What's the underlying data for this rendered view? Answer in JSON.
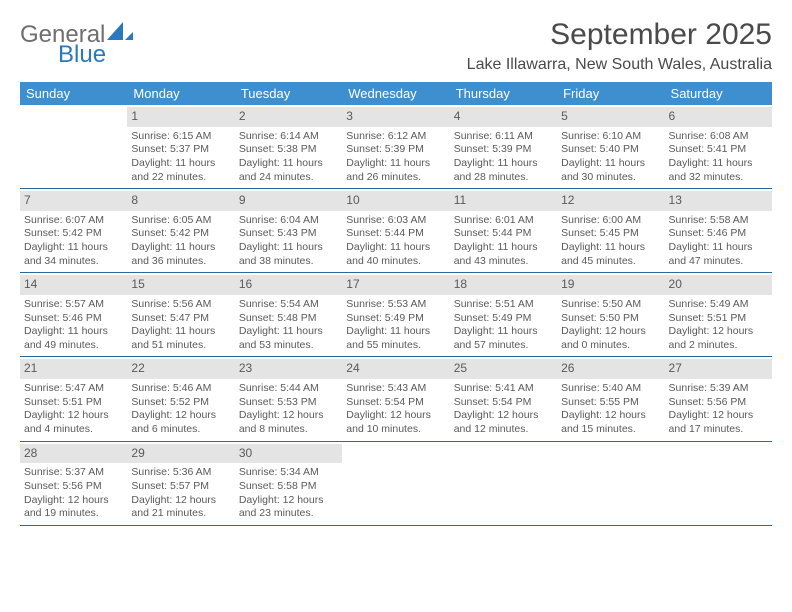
{
  "logo": {
    "word1": "General",
    "word2": "Blue"
  },
  "title": "September 2025",
  "location": "Lake Illawarra, New South Wales, Australia",
  "colors": {
    "header_bg": "#3d8fcf",
    "daynum_bg": "#e4e4e4",
    "row_border": "#2a6aa3",
    "logo_accent": "#2a78bf",
    "text": "#4a4a4a"
  },
  "day_names": [
    "Sunday",
    "Monday",
    "Tuesday",
    "Wednesday",
    "Thursday",
    "Friday",
    "Saturday"
  ],
  "weeks": [
    [
      {
        "n": "",
        "empty": true
      },
      {
        "n": "1",
        "sr": "Sunrise: 6:15 AM",
        "ss": "Sunset: 5:37 PM",
        "d1": "Daylight: 11 hours",
        "d2": "and 22 minutes."
      },
      {
        "n": "2",
        "sr": "Sunrise: 6:14 AM",
        "ss": "Sunset: 5:38 PM",
        "d1": "Daylight: 11 hours",
        "d2": "and 24 minutes."
      },
      {
        "n": "3",
        "sr": "Sunrise: 6:12 AM",
        "ss": "Sunset: 5:39 PM",
        "d1": "Daylight: 11 hours",
        "d2": "and 26 minutes."
      },
      {
        "n": "4",
        "sr": "Sunrise: 6:11 AM",
        "ss": "Sunset: 5:39 PM",
        "d1": "Daylight: 11 hours",
        "d2": "and 28 minutes."
      },
      {
        "n": "5",
        "sr": "Sunrise: 6:10 AM",
        "ss": "Sunset: 5:40 PM",
        "d1": "Daylight: 11 hours",
        "d2": "and 30 minutes."
      },
      {
        "n": "6",
        "sr": "Sunrise: 6:08 AM",
        "ss": "Sunset: 5:41 PM",
        "d1": "Daylight: 11 hours",
        "d2": "and 32 minutes."
      }
    ],
    [
      {
        "n": "7",
        "sr": "Sunrise: 6:07 AM",
        "ss": "Sunset: 5:42 PM",
        "d1": "Daylight: 11 hours",
        "d2": "and 34 minutes."
      },
      {
        "n": "8",
        "sr": "Sunrise: 6:05 AM",
        "ss": "Sunset: 5:42 PM",
        "d1": "Daylight: 11 hours",
        "d2": "and 36 minutes."
      },
      {
        "n": "9",
        "sr": "Sunrise: 6:04 AM",
        "ss": "Sunset: 5:43 PM",
        "d1": "Daylight: 11 hours",
        "d2": "and 38 minutes."
      },
      {
        "n": "10",
        "sr": "Sunrise: 6:03 AM",
        "ss": "Sunset: 5:44 PM",
        "d1": "Daylight: 11 hours",
        "d2": "and 40 minutes."
      },
      {
        "n": "11",
        "sr": "Sunrise: 6:01 AM",
        "ss": "Sunset: 5:44 PM",
        "d1": "Daylight: 11 hours",
        "d2": "and 43 minutes."
      },
      {
        "n": "12",
        "sr": "Sunrise: 6:00 AM",
        "ss": "Sunset: 5:45 PM",
        "d1": "Daylight: 11 hours",
        "d2": "and 45 minutes."
      },
      {
        "n": "13",
        "sr": "Sunrise: 5:58 AM",
        "ss": "Sunset: 5:46 PM",
        "d1": "Daylight: 11 hours",
        "d2": "and 47 minutes."
      }
    ],
    [
      {
        "n": "14",
        "sr": "Sunrise: 5:57 AM",
        "ss": "Sunset: 5:46 PM",
        "d1": "Daylight: 11 hours",
        "d2": "and 49 minutes."
      },
      {
        "n": "15",
        "sr": "Sunrise: 5:56 AM",
        "ss": "Sunset: 5:47 PM",
        "d1": "Daylight: 11 hours",
        "d2": "and 51 minutes."
      },
      {
        "n": "16",
        "sr": "Sunrise: 5:54 AM",
        "ss": "Sunset: 5:48 PM",
        "d1": "Daylight: 11 hours",
        "d2": "and 53 minutes."
      },
      {
        "n": "17",
        "sr": "Sunrise: 5:53 AM",
        "ss": "Sunset: 5:49 PM",
        "d1": "Daylight: 11 hours",
        "d2": "and 55 minutes."
      },
      {
        "n": "18",
        "sr": "Sunrise: 5:51 AM",
        "ss": "Sunset: 5:49 PM",
        "d1": "Daylight: 11 hours",
        "d2": "and 57 minutes."
      },
      {
        "n": "19",
        "sr": "Sunrise: 5:50 AM",
        "ss": "Sunset: 5:50 PM",
        "d1": "Daylight: 12 hours",
        "d2": "and 0 minutes."
      },
      {
        "n": "20",
        "sr": "Sunrise: 5:49 AM",
        "ss": "Sunset: 5:51 PM",
        "d1": "Daylight: 12 hours",
        "d2": "and 2 minutes."
      }
    ],
    [
      {
        "n": "21",
        "sr": "Sunrise: 5:47 AM",
        "ss": "Sunset: 5:51 PM",
        "d1": "Daylight: 12 hours",
        "d2": "and 4 minutes."
      },
      {
        "n": "22",
        "sr": "Sunrise: 5:46 AM",
        "ss": "Sunset: 5:52 PM",
        "d1": "Daylight: 12 hours",
        "d2": "and 6 minutes."
      },
      {
        "n": "23",
        "sr": "Sunrise: 5:44 AM",
        "ss": "Sunset: 5:53 PM",
        "d1": "Daylight: 12 hours",
        "d2": "and 8 minutes."
      },
      {
        "n": "24",
        "sr": "Sunrise: 5:43 AM",
        "ss": "Sunset: 5:54 PM",
        "d1": "Daylight: 12 hours",
        "d2": "and 10 minutes."
      },
      {
        "n": "25",
        "sr": "Sunrise: 5:41 AM",
        "ss": "Sunset: 5:54 PM",
        "d1": "Daylight: 12 hours",
        "d2": "and 12 minutes."
      },
      {
        "n": "26",
        "sr": "Sunrise: 5:40 AM",
        "ss": "Sunset: 5:55 PM",
        "d1": "Daylight: 12 hours",
        "d2": "and 15 minutes."
      },
      {
        "n": "27",
        "sr": "Sunrise: 5:39 AM",
        "ss": "Sunset: 5:56 PM",
        "d1": "Daylight: 12 hours",
        "d2": "and 17 minutes."
      }
    ],
    [
      {
        "n": "28",
        "sr": "Sunrise: 5:37 AM",
        "ss": "Sunset: 5:56 PM",
        "d1": "Daylight: 12 hours",
        "d2": "and 19 minutes."
      },
      {
        "n": "29",
        "sr": "Sunrise: 5:36 AM",
        "ss": "Sunset: 5:57 PM",
        "d1": "Daylight: 12 hours",
        "d2": "and 21 minutes."
      },
      {
        "n": "30",
        "sr": "Sunrise: 5:34 AM",
        "ss": "Sunset: 5:58 PM",
        "d1": "Daylight: 12 hours",
        "d2": "and 23 minutes."
      },
      {
        "n": "",
        "empty": true
      },
      {
        "n": "",
        "empty": true
      },
      {
        "n": "",
        "empty": true
      },
      {
        "n": "",
        "empty": true
      }
    ]
  ]
}
